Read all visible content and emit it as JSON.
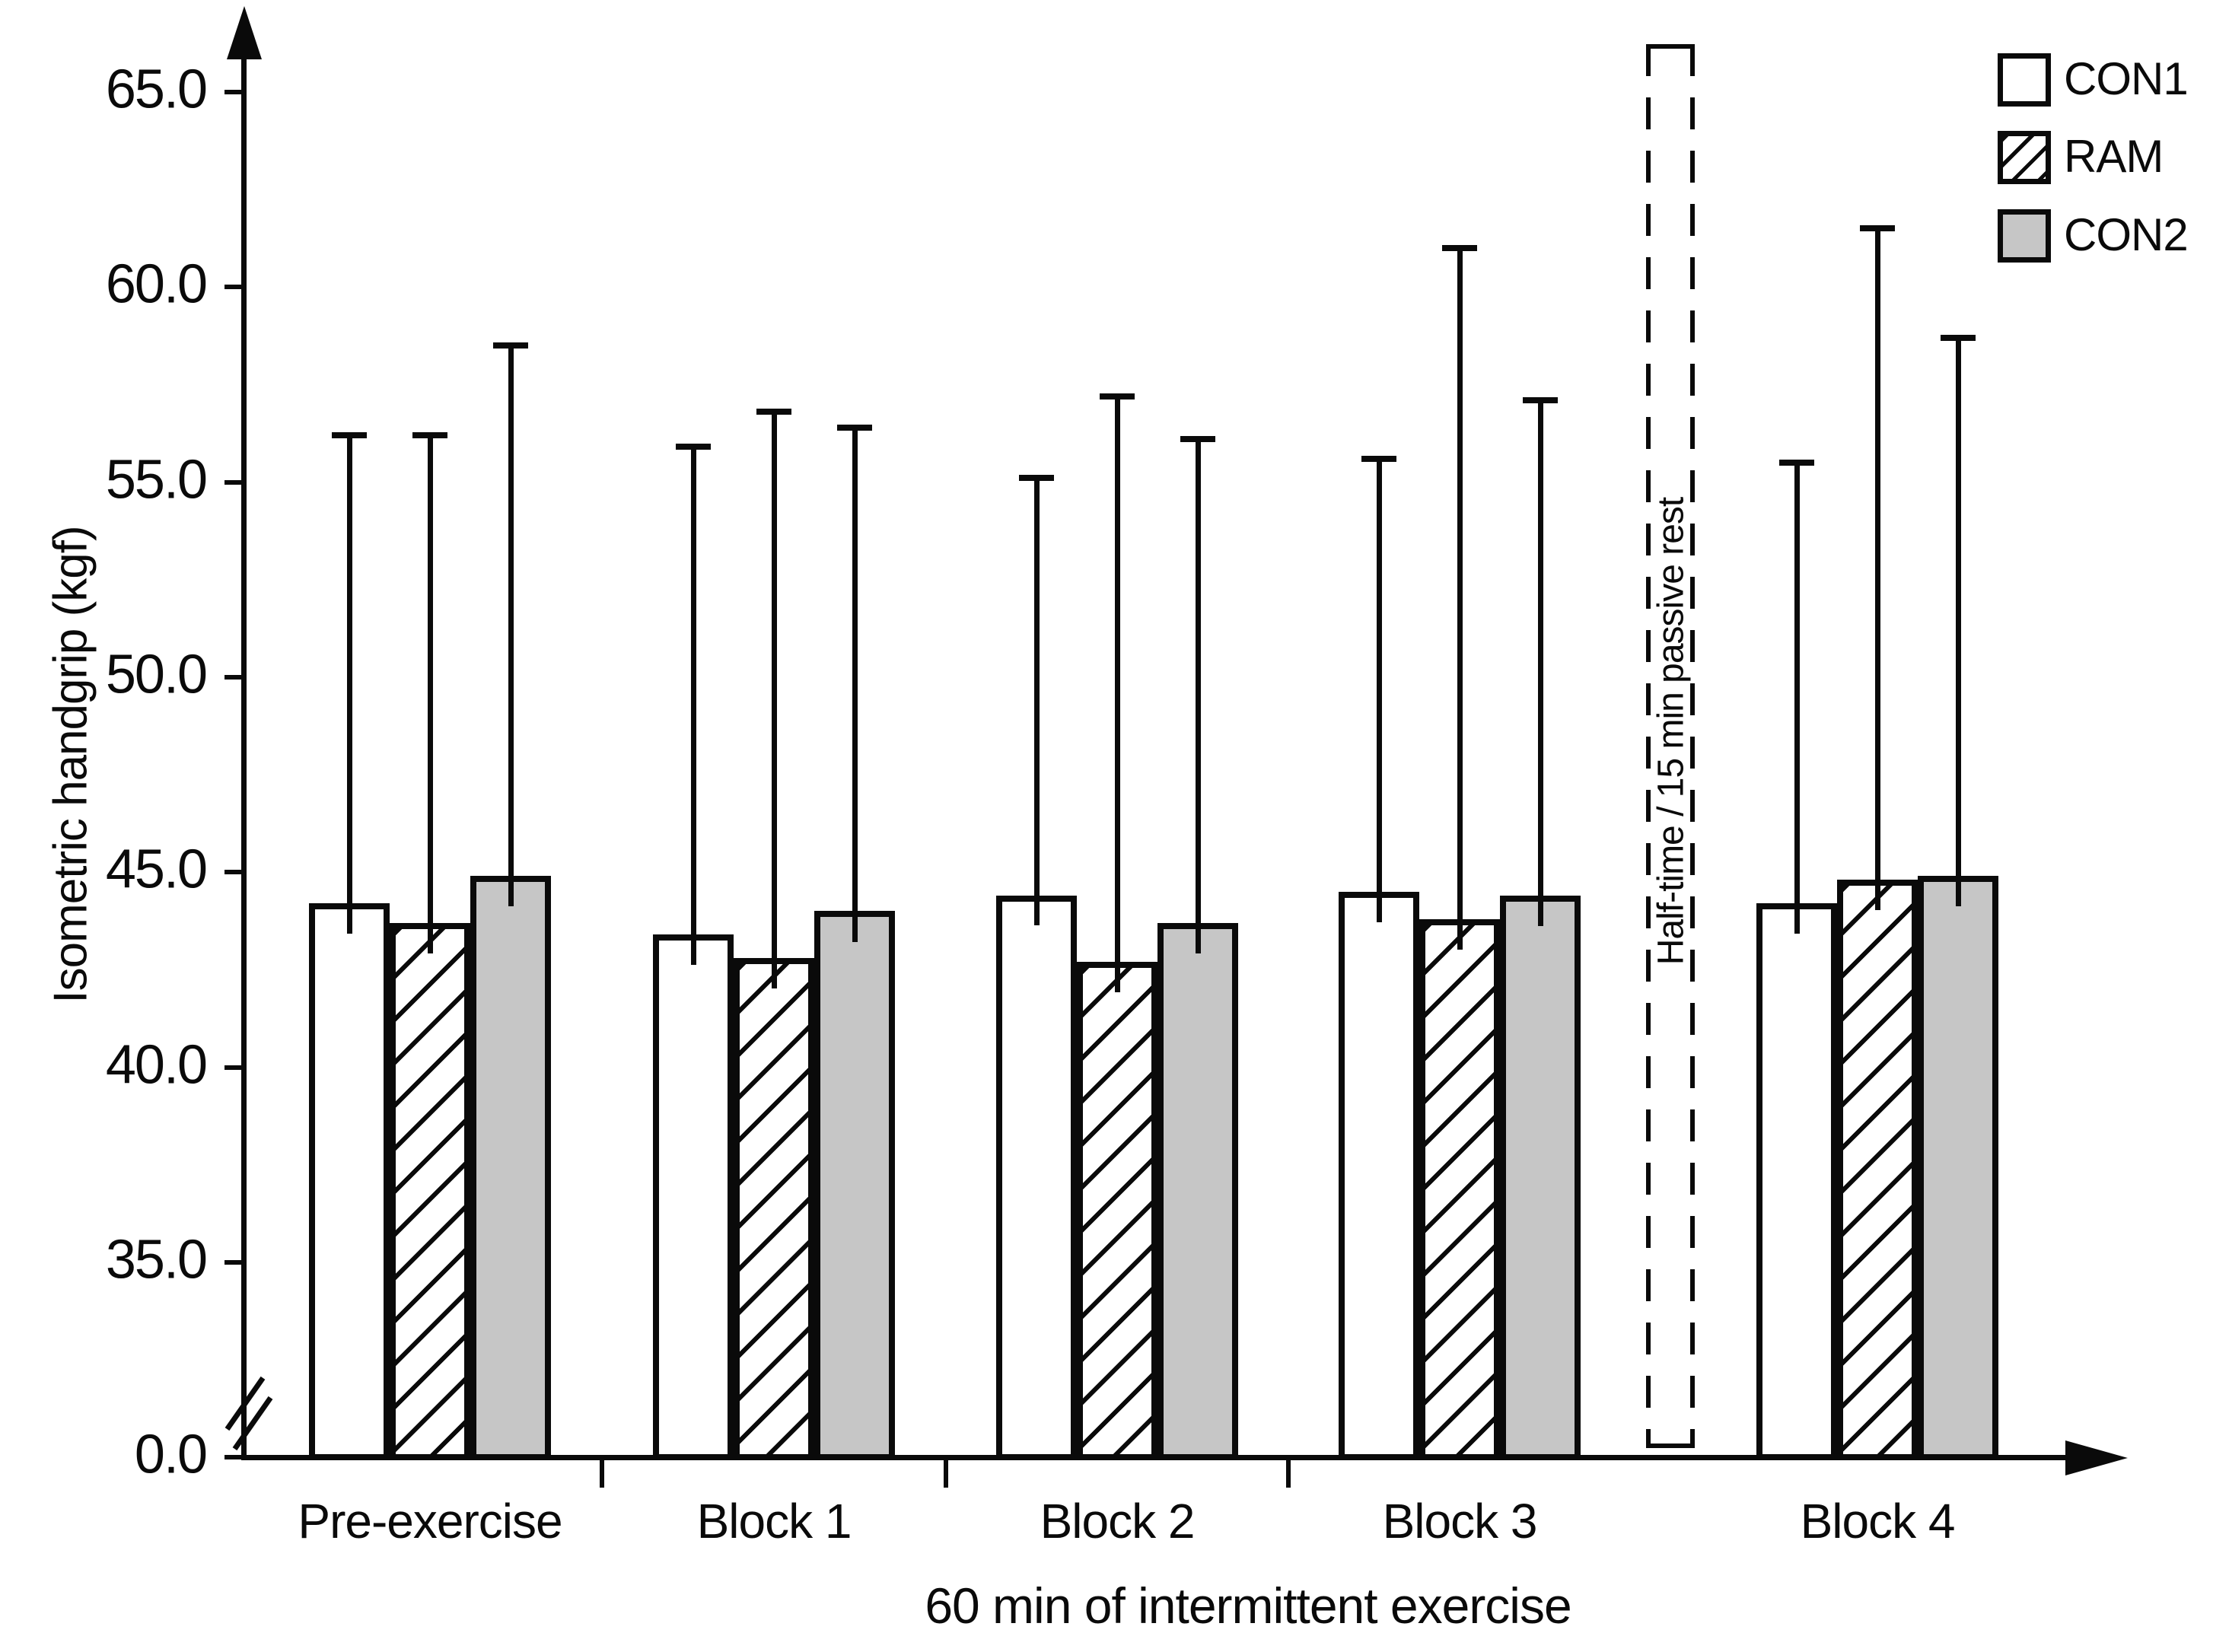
{
  "figure": {
    "ylabel": "Isometric handgrip (kgf)",
    "xlabel": "60 min of intermittent exercise",
    "halftime_label": "Half-time / 15 min passive rest"
  },
  "colors": {
    "bar_gray": "#c6c6c6",
    "line": "#0a0a0a",
    "background": "#ffffff"
  },
  "legend": [
    {
      "label": "CON1",
      "fill": "white"
    },
    {
      "label": "RAM",
      "fill": "hatch"
    },
    {
      "label": "CON2",
      "fill": "gray"
    }
  ],
  "y_tick_labels": [
    "65.0",
    "60.0",
    "55.0",
    "50.0",
    "45.0",
    "40.0",
    "35.0",
    "0.0"
  ],
  "chart_data": {
    "type": "bar",
    "title": "",
    "xlabel": "60 min of intermittent exercise",
    "ylabel": "Isometric handgrip (kgf)",
    "categories": [
      "Pre-exercise",
      "Block 1",
      "Block 2",
      "Block 3",
      "Block 4"
    ],
    "y_ticks": [
      65,
      60,
      55,
      50,
      45,
      40,
      35,
      0
    ],
    "ylim": [
      0,
      66
    ],
    "axis_break": true,
    "grid": false,
    "legend_position": "top-right",
    "error_bars": "upper whiskers (SD)",
    "series": [
      {
        "name": "CON1",
        "fill": "white",
        "values": [
          44.2,
          43.4,
          44.4,
          44.5,
          44.2
        ],
        "error_top": [
          56.2,
          55.9,
          55.1,
          55.6,
          55.5
        ]
      },
      {
        "name": "RAM",
        "fill": "hatch",
        "values": [
          43.7,
          42.8,
          42.7,
          43.8,
          44.8
        ],
        "error_top": [
          56.2,
          56.8,
          57.2,
          61.0,
          61.5
        ]
      },
      {
        "name": "CON2",
        "fill": "gray",
        "values": [
          44.9,
          44.0,
          43.7,
          44.4,
          44.9
        ],
        "error_top": [
          58.5,
          56.4,
          56.1,
          57.1,
          58.7
        ]
      }
    ],
    "annotation": "Half-time / 15 min passive rest (dashed box between Block 3 and Block 4)"
  }
}
